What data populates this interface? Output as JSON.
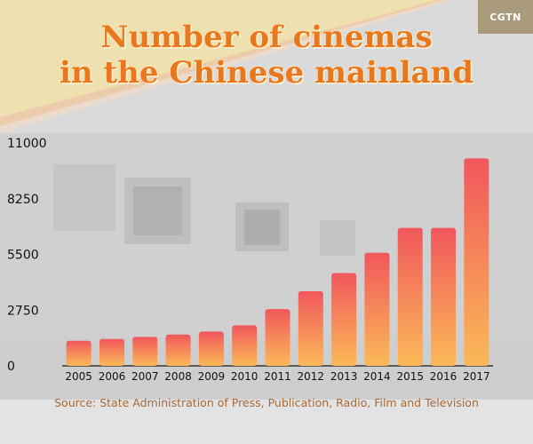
{
  "brand": {
    "logo_text": "CGTN"
  },
  "chart_data": {
    "type": "bar",
    "title_lines": [
      "Number of cinemas",
      "in the Chinese mainland"
    ],
    "source": "Source: State Administration of Press, Publication, Radio, Film and Television",
    "categories": [
      "2005",
      "2006",
      "2007",
      "2008",
      "2009",
      "2010",
      "2011",
      "2012",
      "2013",
      "2014",
      "2015",
      "2016",
      "2017"
    ],
    "values": [
      1240,
      1325,
      1430,
      1545,
      1690,
      2000,
      2800,
      3680,
      4580,
      5580,
      6810,
      6810,
      10240
    ],
    "yticks": [
      0,
      2750,
      5500,
      8250,
      11000
    ],
    "ylim": [
      0,
      11000
    ],
    "grid": false,
    "colors": {
      "bar_top": "#f1575c",
      "bar_bottom": "#fbb957",
      "title": "#e9771d"
    }
  }
}
